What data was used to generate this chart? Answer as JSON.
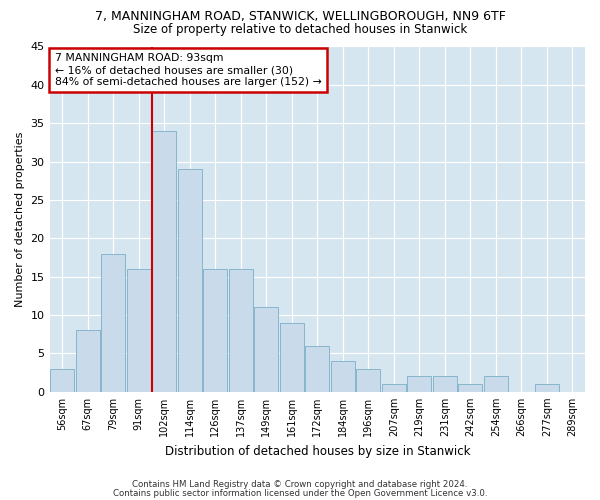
{
  "title_line1": "7, MANNINGHAM ROAD, STANWICK, WELLINGBOROUGH, NN9 6TF",
  "title_line2": "Size of property relative to detached houses in Stanwick",
  "xlabel": "Distribution of detached houses by size in Stanwick",
  "ylabel": "Number of detached properties",
  "bar_color": "#c9daea",
  "bar_edge_color": "#7aaec8",
  "categories": [
    "56sqm",
    "67sqm",
    "79sqm",
    "91sqm",
    "102sqm",
    "114sqm",
    "126sqm",
    "137sqm",
    "149sqm",
    "161sqm",
    "172sqm",
    "184sqm",
    "196sqm",
    "207sqm",
    "219sqm",
    "231sqm",
    "242sqm",
    "254sqm",
    "266sqm",
    "277sqm",
    "289sqm"
  ],
  "values": [
    3,
    8,
    18,
    16,
    34,
    29,
    16,
    16,
    11,
    9,
    6,
    4,
    3,
    1,
    2,
    2,
    1,
    2,
    0,
    1,
    0
  ],
  "ylim": [
    0,
    45
  ],
  "yticks": [
    0,
    5,
    10,
    15,
    20,
    25,
    30,
    35,
    40,
    45
  ],
  "vline_bin_index": 3.5,
  "annotation_text_line1": "7 MANNINGHAM ROAD: 93sqm",
  "annotation_text_line2": "← 16% of detached houses are smaller (30)",
  "annotation_text_line3": "84% of semi-detached houses are larger (152) →",
  "footnote_line1": "Contains HM Land Registry data © Crown copyright and database right 2024.",
  "footnote_line2": "Contains public sector information licensed under the Open Government Licence v3.0.",
  "grid_color": "#ffffff",
  "bg_color": "#d6e6f0",
  "fig_bg_color": "#ffffff",
  "annotation_box_color": "#ffffff",
  "annotation_box_edge_color": "#cc0000",
  "vline_color": "#cc0000"
}
